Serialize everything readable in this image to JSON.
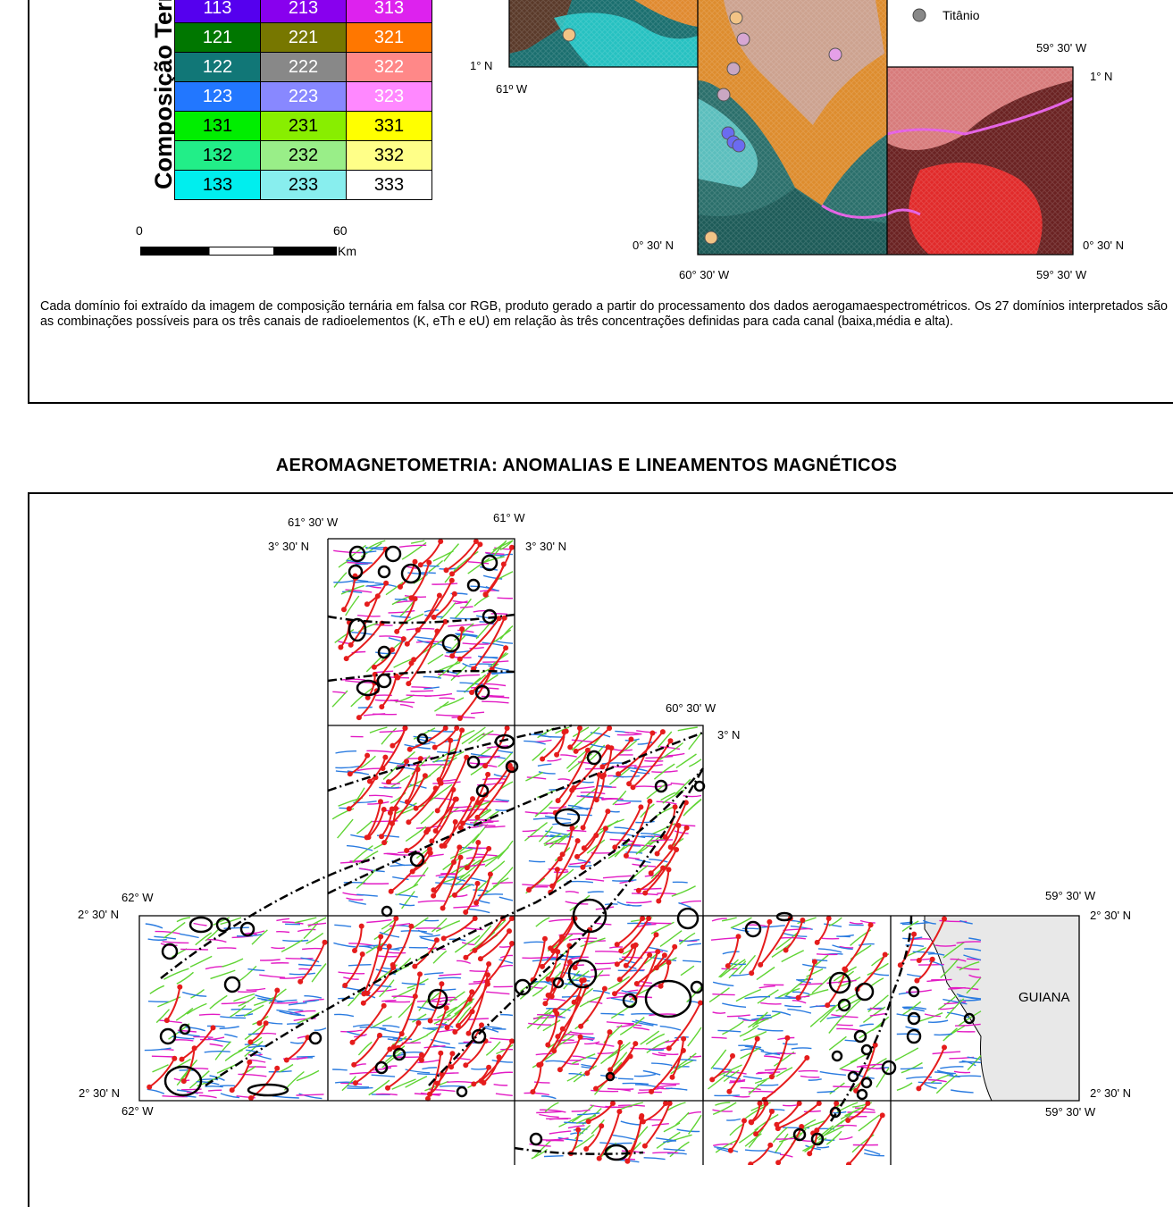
{
  "ternary": {
    "axis_label": "Composição Ternária",
    "rows": [
      [
        {
          "t": "113",
          "bg": "#5500ee",
          "fg": "#fff"
        },
        {
          "t": "213",
          "bg": "#8800ee",
          "fg": "#fff"
        },
        {
          "t": "313",
          "bg": "#dd22ee",
          "fg": "#fff"
        }
      ],
      [
        {
          "t": "121",
          "bg": "#007700",
          "fg": "#fff"
        },
        {
          "t": "221",
          "bg": "#777700",
          "fg": "#fff"
        },
        {
          "t": "321",
          "bg": "#ff7700",
          "fg": "#fff"
        }
      ],
      [
        {
          "t": "122",
          "bg": "#117777",
          "fg": "#fff"
        },
        {
          "t": "222",
          "bg": "#888888",
          "fg": "#fff"
        },
        {
          "t": "322",
          "bg": "#ff8888",
          "fg": "#fff"
        }
      ],
      [
        {
          "t": "123",
          "bg": "#2277ff",
          "fg": "#fff"
        },
        {
          "t": "223",
          "bg": "#8888ff",
          "fg": "#fff"
        },
        {
          "t": "323",
          "bg": "#ff88ff",
          "fg": "#fff"
        }
      ],
      [
        {
          "t": "131",
          "bg": "#00ee00",
          "fg": "#000"
        },
        {
          "t": "231",
          "bg": "#88ee00",
          "fg": "#000"
        },
        {
          "t": "331",
          "bg": "#ffff00",
          "fg": "#000"
        }
      ],
      [
        {
          "t": "132",
          "bg": "#22ee88",
          "fg": "#000"
        },
        {
          "t": "232",
          "bg": "#99ee88",
          "fg": "#000"
        },
        {
          "t": "332",
          "bg": "#ffff88",
          "fg": "#000"
        }
      ],
      [
        {
          "t": "133",
          "bg": "#00eeee",
          "fg": "#000"
        },
        {
          "t": "233",
          "bg": "#88eeee",
          "fg": "#000"
        },
        {
          "t": "333",
          "bg": "#ffffff",
          "fg": "#000"
        }
      ]
    ]
  },
  "scale": {
    "start": "0",
    "end": "60",
    "unit": "Km"
  },
  "legend": {
    "titanium_label": "Titânio"
  },
  "top_map": {
    "lat_1n_left": "1° N",
    "lon_61w": "61º W",
    "lon_59_30_top": "59° 30' W",
    "lat_1n_right": "1° N",
    "lat_0_30_left": "0° 30' N",
    "lat_0_30_right": "0° 30' N",
    "lon_60_30_bottom": "60° 30' W",
    "lon_59_30_bottom": "59° 30' W"
  },
  "caption": "Cada domínio foi extraído da imagem de composição ternária em falsa cor RGB, produto gerado a partir do processamento dos dados aerogamaespectrométricos. Os 27 domínios  interpretados são as combinações possíveis para os três canais de radioelementos (K, eTh e eU) em relação às três concentrações definidas para cada canal (baixa,média e alta).",
  "section_title": "AEROMAGNETOMETRIA: ANOMALIAS E LINEAMENTOS MAGNÉTICOS",
  "mag_map": {
    "lon_61_30": "61° 30' W",
    "lon_61": "61° W",
    "lat_3_30_left": "3° 30' N",
    "lat_3_30_right": "3° 30' N",
    "lon_60_30": "60° 30' W",
    "lat_3": "3° N",
    "lon_62_top": "62° W",
    "lat_2_30_top_left": "2° 30' N",
    "lon_59_30_top": "59° 30' W",
    "lat_2_30_top_right": "2° 30' N",
    "country": "GUIANA",
    "lat_2_30_bottom_left": "2° 30' N",
    "lon_62_bottom": "62° W",
    "lat_2_30_bottom_right": "2° 30' N",
    "lon_59_30_bottom": "59° 30' W"
  },
  "colors": {
    "anomaly": "#e51c1c",
    "lineament_green": "#5fd433",
    "lineament_blue": "#2a7be0",
    "lineament_magenta": "#e21bc4",
    "guiana_fill": "#e8e8e8"
  }
}
